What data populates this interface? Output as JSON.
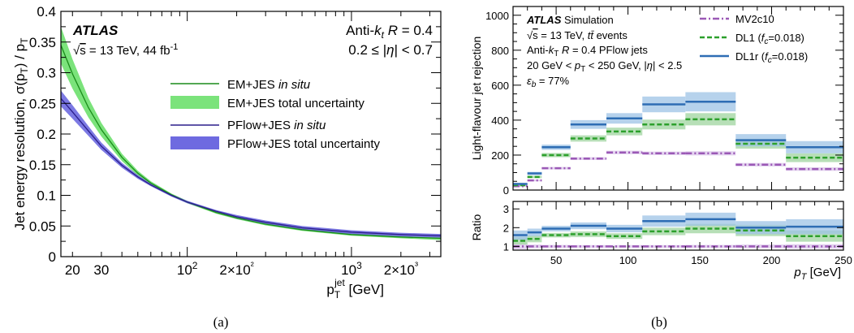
{
  "panels": [
    {
      "caption": "(a)",
      "experiment": "ATLAS",
      "energy_line": "√s = 13 TeV, 44 fb⁻¹",
      "jet_line": "Anti-kt R = 0.4",
      "eta_line": "0.2 ≤ |η| < 0.7",
      "ylabel": "Jet energy resolution,  σ(pT) / pT",
      "xlabel": "pT jet [GeV]",
      "legend": [
        "EM+JES in situ",
        "EM+JES total uncertainty",
        "PFlow+JES in situ",
        "PFlow+JES total uncertainty"
      ]
    },
    {
      "caption": "(b)",
      "experiment": "ATLAS",
      "experiment_suffix": "Simulation",
      "energy_line": "√s = 13 TeV, tt̄ events",
      "jet_line": "Anti-kT R = 0.4 PFlow jets",
      "cut_line": "20 GeV < pT < 250 GeV, |η| < 2.5",
      "eff_line": "εb = 77%",
      "ylabel_top": "Light-flavour jet rejection",
      "ylabel_bottom": "Ratio",
      "xlabel": "pT [GeV]",
      "legend": [
        "MV2c10",
        "DL1 (fc=0.018)",
        "DL1r (fc=0.018)"
      ]
    }
  ],
  "colors": {
    "em_line": "#1a8c1a",
    "em_band": "#7be37b",
    "pf_line": "#2b1e8c",
    "pf_band": "#6e6ae0",
    "mv2c10": "#9b59b6",
    "dl1": "#2ca02c",
    "dl1r": "#2e6db4",
    "dl1r_band": "#9ec3e6",
    "dl1_band": "#9fd49f",
    "mv2c10_band": "#d9c4ea"
  },
  "chart_data": [
    {
      "type": "line",
      "xscale": "log",
      "xlim": [
        17,
        3500
      ],
      "ylim": [
        0,
        0.4
      ],
      "xticks": [
        20,
        30,
        100,
        200,
        1000,
        2000
      ],
      "xtick_labels": [
        "20",
        "30",
        "10²",
        "2×10²",
        "10³",
        "2×10³"
      ],
      "yticks": [
        0,
        0.05,
        0.1,
        0.15,
        0.2,
        0.25,
        0.3,
        0.35,
        0.4
      ],
      "ytick_labels": [
        "0",
        "0.05",
        "0.1",
        "0.15",
        "0.2",
        "0.25",
        "0.3",
        "0.35",
        "0.4"
      ],
      "x": [
        17,
        20,
        25,
        30,
        40,
        50,
        60,
        80,
        100,
        150,
        200,
        300,
        500,
        1000,
        2000,
        3500
      ],
      "series": [
        {
          "name": "EM+JES in situ",
          "values": [
            0.345,
            0.298,
            0.243,
            0.207,
            0.162,
            0.136,
            0.12,
            0.101,
            0.089,
            0.072,
            0.063,
            0.053,
            0.044,
            0.036,
            0.032,
            0.03
          ],
          "band_up": [
            0.375,
            0.322,
            0.259,
            0.218,
            0.168,
            0.14,
            0.123,
            0.103,
            0.091,
            0.074,
            0.065,
            0.055,
            0.046,
            0.038,
            0.034,
            0.032
          ],
          "band_down": [
            0.315,
            0.274,
            0.227,
            0.196,
            0.156,
            0.132,
            0.117,
            0.099,
            0.087,
            0.07,
            0.061,
            0.051,
            0.042,
            0.034,
            0.03,
            0.027
          ]
        },
        {
          "name": "PFlow+JES in situ",
          "values": [
            0.258,
            0.236,
            0.205,
            0.18,
            0.149,
            0.13,
            0.117,
            0.1,
            0.089,
            0.074,
            0.065,
            0.056,
            0.047,
            0.04,
            0.036,
            0.034
          ],
          "band_up": [
            0.271,
            0.247,
            0.213,
            0.186,
            0.153,
            0.133,
            0.119,
            0.102,
            0.091,
            0.076,
            0.068,
            0.059,
            0.05,
            0.043,
            0.039,
            0.037
          ],
          "band_down": [
            0.245,
            0.225,
            0.197,
            0.174,
            0.145,
            0.127,
            0.115,
            0.098,
            0.087,
            0.072,
            0.062,
            0.053,
            0.044,
            0.037,
            0.033,
            0.031
          ]
        }
      ]
    },
    {
      "type": "bar",
      "xlim": [
        20,
        250
      ],
      "ylim": [
        0,
        1050
      ],
      "xticks": [
        50,
        100,
        150,
        200,
        250
      ],
      "yticks": [
        0,
        200,
        400,
        600,
        800,
        1000
      ],
      "bin_edges": [
        20,
        30,
        40,
        60,
        85,
        110,
        140,
        175,
        210,
        250
      ],
      "series": [
        {
          "name": "MV2c10",
          "values": [
            22,
            55,
            125,
            180,
            215,
            210,
            210,
            145,
            120
          ],
          "unc": [
            4,
            5,
            7,
            8,
            10,
            10,
            12,
            10,
            10
          ]
        },
        {
          "name": "DL1 (fc=0.018)",
          "values": [
            28,
            75,
            200,
            295,
            335,
            375,
            405,
            265,
            185
          ],
          "unc": [
            5,
            7,
            12,
            18,
            22,
            28,
            35,
            28,
            25
          ]
        },
        {
          "name": "DL1r (fc=0.018)",
          "values": [
            35,
            95,
            245,
            375,
            410,
            490,
            505,
            285,
            245
          ],
          "unc": [
            6,
            9,
            15,
            25,
            30,
            45,
            55,
            35,
            35
          ]
        }
      ],
      "ratio": {
        "ylabel": "Ratio",
        "ylim": [
          0.8,
          3.4
        ],
        "yticks": [
          1,
          2,
          3
        ],
        "series": [
          {
            "name": "MV2c10",
            "values": [
              1,
              1,
              1,
              1,
              1,
              1,
              1,
              1,
              1
            ],
            "unc": [
              0.15,
              0.1,
              0.08,
              0.07,
              0.07,
              0.07,
              0.08,
              0.1,
              0.12
            ]
          },
          {
            "name": "DL1 (fc=0.018)",
            "values": [
              1.3,
              1.4,
              1.6,
              1.65,
              1.55,
              1.8,
              1.95,
              1.85,
              1.55
            ],
            "unc": [
              0.2,
              0.18,
              0.12,
              0.15,
              0.15,
              0.2,
              0.25,
              0.3,
              0.3
            ]
          },
          {
            "name": "DL1r (fc=0.018)",
            "values": [
              1.6,
              1.75,
              1.95,
              2.1,
              1.95,
              2.35,
              2.45,
              2.0,
              2.05
            ],
            "unc": [
              0.25,
              0.2,
              0.15,
              0.18,
              0.2,
              0.3,
              0.35,
              0.35,
              0.4
            ]
          }
        ]
      }
    }
  ]
}
